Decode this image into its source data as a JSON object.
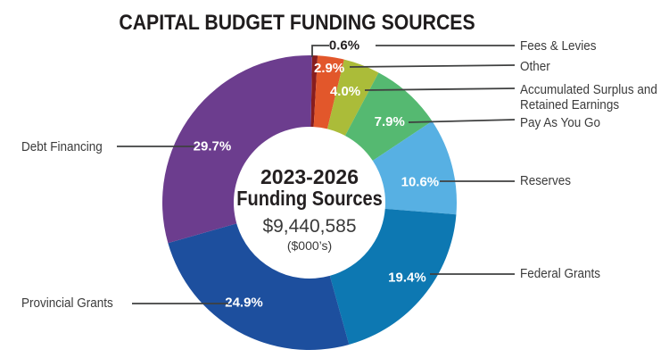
{
  "title": "CAPITAL BUDGET FUNDING SOURCES",
  "center": {
    "line1": "2023-2026",
    "line2": "Funding Sources",
    "amount": "$9,440,585",
    "unit": "($000’s)"
  },
  "chart_data": {
    "type": "donut",
    "title": "CAPITAL BUDGET FUNDING SOURCES",
    "center_label": "2023-2026 Funding Sources",
    "center_value": "$9,440,585",
    "center_unit": "($000’s)",
    "units": "percent",
    "total_percent": 100.0,
    "direction": "clockwise",
    "start_angle_deg": 0,
    "legend_position": "callout-labels",
    "segments": [
      {
        "label": "Fees & Levies",
        "value": 0.6,
        "color": "#871d1e"
      },
      {
        "label": "Other",
        "value": 2.9,
        "color": "#e2572b"
      },
      {
        "label": "Accumulated Surplus and Retained Earnings",
        "value": 4.0,
        "color": "#abbc39"
      },
      {
        "label": "Pay As You Go",
        "value": 7.9,
        "color": "#55b971"
      },
      {
        "label": "Reserves",
        "value": 10.6,
        "color": "#57b0e3"
      },
      {
        "label": "Federal Grants",
        "value": 19.4,
        "color": "#0d78b2"
      },
      {
        "label": "Provincial Grants",
        "value": 24.9,
        "color": "#1d4f9e"
      },
      {
        "label": "Debt Financing",
        "value": 29.7,
        "color": "#6c3d8e"
      }
    ]
  }
}
